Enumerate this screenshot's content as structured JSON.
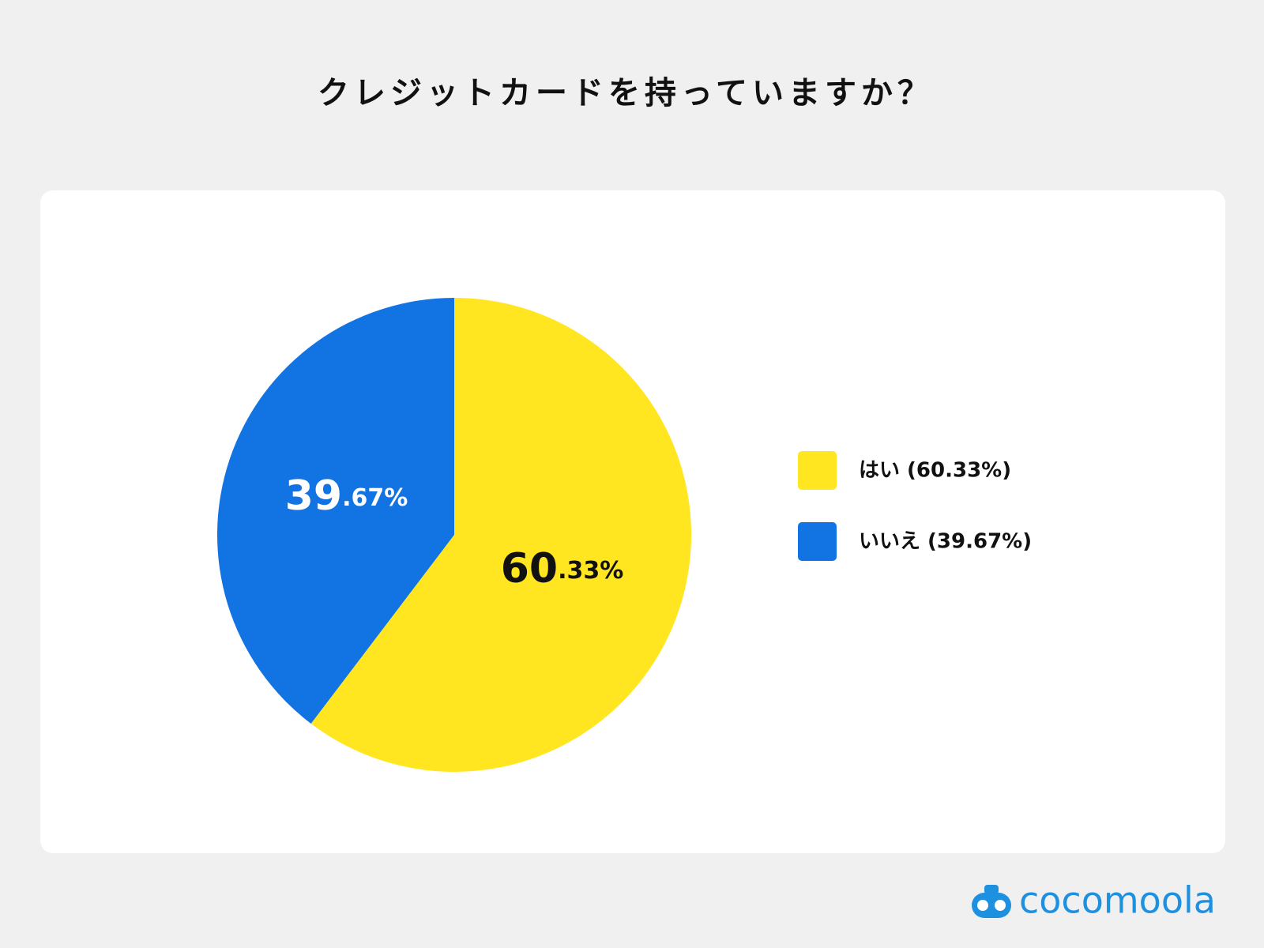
{
  "title": "クレジットカードを持っていますか？",
  "chart_data": {
    "type": "pie",
    "categories": [
      "はい",
      "いいえ"
    ],
    "values": [
      60.33,
      39.67
    ],
    "value_labels": [
      "60.33%",
      "39.67%"
    ],
    "legend_labels": [
      "はい (60.33%)",
      "いいえ (39.67%)"
    ],
    "colors": [
      "#FFE620",
      "#1273E3"
    ],
    "label_colors": [
      "#111111",
      "#ffffff"
    ]
  },
  "brand": "cocomoola"
}
